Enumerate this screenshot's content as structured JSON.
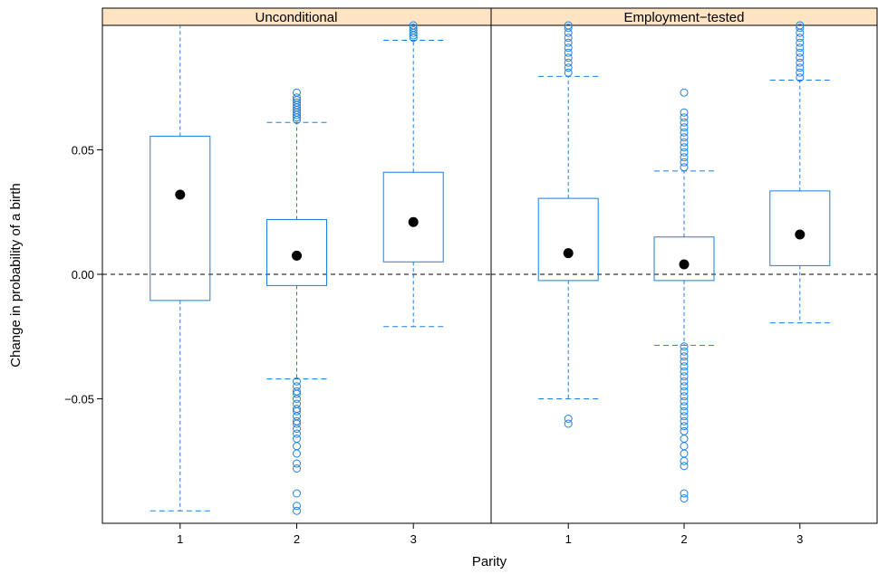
{
  "chart_data": {
    "type": "boxplot",
    "xlabel": "Parity",
    "ylabel": "Change in probability of a birth",
    "ylim": [
      -0.1,
      0.1
    ],
    "y_ticks": [
      {
        "value": 0.05,
        "label": "0.05"
      },
      {
        "value": 0.0,
        "label": "0.00"
      },
      {
        "value": -0.05,
        "label": "−0.05"
      }
    ],
    "categories": [
      "1",
      "2",
      "3"
    ],
    "reference_line": 0.0,
    "colors": {
      "box": "#1a7fe0",
      "median": "#000000",
      "strip": "#ffe4c4"
    },
    "panels": [
      {
        "name": "Unconditional",
        "boxes": [
          {
            "category": "1",
            "whisker_low": -0.095,
            "q1": -0.0105,
            "median": 0.032,
            "q3": 0.0555,
            "whisker_high": 0.1,
            "outliers": []
          },
          {
            "category": "2",
            "whisker_low": -0.042,
            "q1": -0.0045,
            "median": 0.0075,
            "q3": 0.022,
            "whisker_high": 0.061,
            "outliers": [
              -0.043,
              -0.045,
              -0.047,
              -0.048,
              -0.05,
              -0.052,
              -0.054,
              -0.055,
              -0.057,
              -0.059,
              -0.06,
              -0.062,
              -0.064,
              -0.066,
              -0.069,
              -0.072,
              -0.076,
              -0.078,
              -0.088,
              -0.093,
              -0.095,
              0.062,
              0.063,
              0.064,
              0.065,
              0.066,
              0.067,
              0.068,
              0.069,
              0.07,
              0.071,
              0.073
            ]
          },
          {
            "category": "3",
            "whisker_low": -0.021,
            "q1": 0.005,
            "median": 0.021,
            "q3": 0.041,
            "whisker_high": 0.094,
            "outliers": [
              0.095,
              0.096,
              0.097,
              0.098,
              0.099,
              0.1
            ]
          }
        ]
      },
      {
        "name": "Employment−tested",
        "boxes": [
          {
            "category": "1",
            "whisker_low": -0.05,
            "q1": -0.0025,
            "median": 0.0085,
            "q3": 0.0305,
            "whisker_high": 0.0795,
            "outliers": [
              -0.058,
              -0.06,
              0.081,
              0.083,
              0.085,
              0.087,
              0.089,
              0.091,
              0.093,
              0.095,
              0.097,
              0.099,
              0.1
            ]
          },
          {
            "category": "2",
            "whisker_low": -0.0285,
            "q1": -0.0025,
            "median": 0.004,
            "q3": 0.015,
            "whisker_high": 0.0415,
            "outliers": [
              -0.029,
              -0.031,
              -0.033,
              -0.035,
              -0.037,
              -0.039,
              -0.041,
              -0.043,
              -0.045,
              -0.047,
              -0.049,
              -0.051,
              -0.053,
              -0.055,
              -0.057,
              -0.059,
              -0.061,
              -0.063,
              -0.066,
              -0.069,
              -0.072,
              -0.075,
              -0.077,
              -0.088,
              -0.09,
              0.043,
              0.045,
              0.047,
              0.049,
              0.051,
              0.053,
              0.055,
              0.057,
              0.059,
              0.061,
              0.063,
              0.065,
              0.073
            ]
          },
          {
            "category": "3",
            "whisker_low": -0.0195,
            "q1": 0.0035,
            "median": 0.016,
            "q3": 0.0335,
            "whisker_high": 0.078,
            "outliers": [
              0.079,
              0.081,
              0.083,
              0.085,
              0.087,
              0.089,
              0.091,
              0.093,
              0.095,
              0.097,
              0.099,
              0.1
            ]
          }
        ]
      }
    ]
  }
}
